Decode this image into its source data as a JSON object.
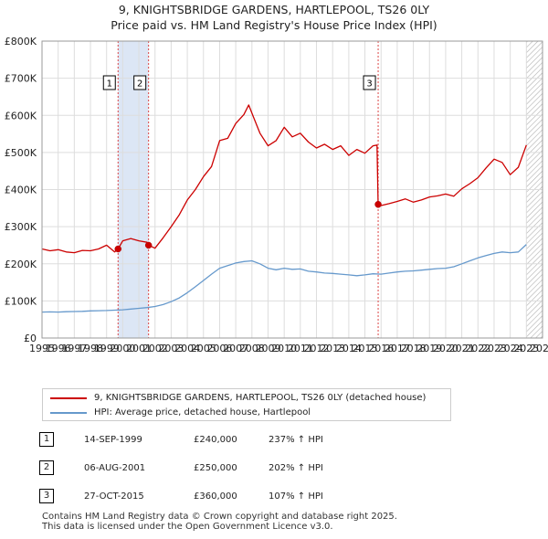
{
  "title": {
    "line1": "9, KNIGHTSBRIDGE GARDENS, HARTLEPOOL, TS26 0LY",
    "line2": "Price paid vs. HM Land Registry's House Price Index (HPI)"
  },
  "chart_data": {
    "type": "line",
    "title": "9, KNIGHTSBRIDGE GARDENS, HARTLEPOOL, TS26 0LY",
    "subtitle": "Price paid vs. HM Land Registry's House Price Index (HPI)",
    "xlabel": "",
    "ylabel": "",
    "xlim": [
      1995,
      2026
    ],
    "ylim": [
      0,
      800000
    ],
    "y_ticks": [
      {
        "value": 0,
        "label": "£0"
      },
      {
        "value": 100000,
        "label": "£100K"
      },
      {
        "value": 200000,
        "label": "£200K"
      },
      {
        "value": 300000,
        "label": "£300K"
      },
      {
        "value": 400000,
        "label": "£400K"
      },
      {
        "value": 500000,
        "label": "£500K"
      },
      {
        "value": 600000,
        "label": "£600K"
      },
      {
        "value": 700000,
        "label": "£700K"
      },
      {
        "value": 800000,
        "label": "£800K"
      }
    ],
    "x_ticks": [
      "1995",
      "1996",
      "1997",
      "1998",
      "1999",
      "2000",
      "2001",
      "2002",
      "2003",
      "2004",
      "2005",
      "2006",
      "2007",
      "2008",
      "2009",
      "2010",
      "2011",
      "2012",
      "2013",
      "2014",
      "2015",
      "2016",
      "2017",
      "2018",
      "2019",
      "2020",
      "2021",
      "2022",
      "2023",
      "2024",
      "2025",
      "2026"
    ],
    "grid": true,
    "colors": {
      "property": "#cc0000",
      "hpi": "#6699cc",
      "shade": "#dce6f5",
      "event_line": "#dd4444",
      "grid": "#dddddd",
      "hatch": "#b0b0b0"
    },
    "series": [
      {
        "name": "9, KNIGHTSBRIDGE GARDENS, HARTLEPOOL, TS26 0LY (detached house)",
        "color": "#cc0000",
        "x": [
          1995.0,
          1995.5,
          1996.0,
          1996.5,
          1997.0,
          1997.5,
          1998.0,
          1998.5,
          1999.0,
          1999.5,
          1999.71,
          2000.0,
          2000.5,
          2001.0,
          2001.5,
          2001.6,
          2002.0,
          2002.5,
          2003.0,
          2003.5,
          2004.0,
          2004.5,
          2005.0,
          2005.5,
          2006.0,
          2006.5,
          2007.0,
          2007.5,
          2007.8,
          2008.0,
          2008.5,
          2009.0,
          2009.5,
          2010.0,
          2010.5,
          2011.0,
          2011.5,
          2012.0,
          2012.5,
          2013.0,
          2013.5,
          2014.0,
          2014.5,
          2015.0,
          2015.5,
          2015.75,
          2015.82,
          2016.0,
          2016.5,
          2017.0,
          2017.5,
          2018.0,
          2018.5,
          2019.0,
          2019.5,
          2020.0,
          2020.5,
          2021.0,
          2021.5,
          2022.0,
          2022.5,
          2023.0,
          2023.5,
          2024.0,
          2024.5,
          2025.0
        ],
        "values": [
          240000,
          235000,
          238000,
          232000,
          230000,
          236000,
          235000,
          240000,
          250000,
          232000,
          240000,
          262000,
          268000,
          262000,
          258000,
          250000,
          242000,
          270000,
          300000,
          332000,
          372000,
          400000,
          435000,
          462000,
          532000,
          538000,
          578000,
          602000,
          628000,
          606000,
          552000,
          518000,
          532000,
          568000,
          542000,
          552000,
          528000,
          512000,
          522000,
          508000,
          518000,
          492000,
          508000,
          498000,
          518000,
          520000,
          360000,
          357000,
          362000,
          368000,
          375000,
          366000,
          372000,
          380000,
          383000,
          388000,
          382000,
          402000,
          416000,
          432000,
          458000,
          482000,
          473000,
          440000,
          460000,
          520000
        ]
      },
      {
        "name": "HPI: Average price, detached house, Hartlepool",
        "color": "#6699cc",
        "x": [
          1995.0,
          1995.5,
          1996.0,
          1996.5,
          1997.0,
          1997.5,
          1998.0,
          1998.5,
          1999.0,
          1999.5,
          2000.0,
          2000.5,
          2001.0,
          2001.5,
          2002.0,
          2002.5,
          2003.0,
          2003.5,
          2004.0,
          2004.5,
          2005.0,
          2005.5,
          2006.0,
          2006.5,
          2007.0,
          2007.5,
          2008.0,
          2008.5,
          2009.0,
          2009.5,
          2010.0,
          2010.5,
          2011.0,
          2011.5,
          2012.0,
          2012.5,
          2013.0,
          2013.5,
          2014.0,
          2014.5,
          2015.0,
          2015.5,
          2016.0,
          2016.5,
          2017.0,
          2017.5,
          2018.0,
          2018.5,
          2019.0,
          2019.5,
          2020.0,
          2020.5,
          2021.0,
          2021.5,
          2022.0,
          2022.5,
          2023.0,
          2023.5,
          2024.0,
          2024.5,
          2025.0
        ],
        "values": [
          70000,
          70500,
          70000,
          71000,
          71500,
          72000,
          73000,
          73500,
          74000,
          75000,
          76000,
          78000,
          80000,
          82000,
          85000,
          90000,
          98000,
          108000,
          122000,
          138000,
          155000,
          172000,
          188000,
          195000,
          202000,
          206000,
          208000,
          200000,
          188000,
          184000,
          188000,
          185000,
          186000,
          180000,
          178000,
          175000,
          174000,
          172000,
          170000,
          168000,
          170000,
          173000,
          172000,
          175000,
          178000,
          180000,
          181000,
          183000,
          185000,
          187000,
          188000,
          192000,
          200000,
          208000,
          216000,
          222000,
          228000,
          232000,
          230000,
          232000,
          252000
        ]
      }
    ],
    "shaded_ranges": [
      [
        1999.71,
        2001.6
      ]
    ],
    "hatched_range": [
      2025.0,
      2026.0
    ],
    "events": [
      {
        "label": "1",
        "x": 1999.71,
        "price": 240000
      },
      {
        "label": "2",
        "x": 2001.6,
        "price": 250000
      },
      {
        "label": "3",
        "x": 2015.82,
        "price": 360000
      }
    ]
  },
  "legend": {
    "property_label": "9, KNIGHTSBRIDGE GARDENS, HARTLEPOOL, TS26 0LY (detached house)",
    "hpi_label": "HPI: Average price, detached house, Hartlepool"
  },
  "transactions": [
    {
      "num": "1",
      "date": "14-SEP-1999",
      "price": "£240,000",
      "hpi": "237% ↑ HPI"
    },
    {
      "num": "2",
      "date": "06-AUG-2001",
      "price": "£250,000",
      "hpi": "202% ↑ HPI"
    },
    {
      "num": "3",
      "date": "27-OCT-2015",
      "price": "£360,000",
      "hpi": "107% ↑ HPI"
    }
  ],
  "footer": {
    "line1": "Contains HM Land Registry data © Crown copyright and database right 2025.",
    "line2": "This data is licensed under the Open Government Licence v3.0."
  }
}
